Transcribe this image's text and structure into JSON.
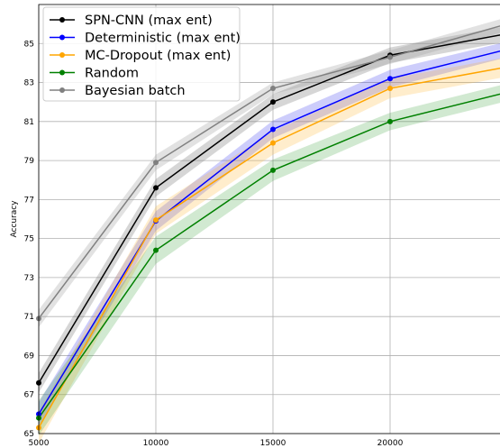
{
  "chart_data": {
    "type": "line",
    "title": "",
    "xlabel": "",
    "ylabel": "Accuracy",
    "x": [
      5000,
      10000,
      15000,
      20000,
      25000
    ],
    "xlim": [
      5000,
      25000
    ],
    "ylim": [
      65,
      87
    ],
    "x_ticks": [
      "5000",
      "10000",
      "15000",
      "20000"
    ],
    "y_ticks": [
      "65",
      "67",
      "69",
      "71",
      "73",
      "75",
      "77",
      "79",
      "81",
      "83",
      "85"
    ],
    "grid": true,
    "legend_position": "top-left",
    "series": [
      {
        "name": "SPN-CNN (max ent)",
        "color": "#000000",
        "values": [
          67.6,
          77.6,
          82.0,
          84.4,
          85.5
        ],
        "band": [
          0.5,
          0.45,
          0.4,
          0.4,
          0.4
        ],
        "band_color": "#808080",
        "band_opacity": 0.32
      },
      {
        "name": "Deterministic (max ent)",
        "color": "#0000ff",
        "values": [
          66.0,
          75.9,
          80.6,
          83.2,
          84.7
        ],
        "band": [
          0.6,
          0.5,
          0.45,
          0.45,
          0.4
        ],
        "band_color": "#4a4af0",
        "band_opacity": 0.28
      },
      {
        "name": "MC-Dropout (max ent)",
        "color": "#ffa500",
        "values": [
          65.3,
          75.95,
          79.9,
          82.7,
          83.8
        ],
        "band": [
          0.8,
          0.7,
          0.6,
          0.5,
          0.5
        ],
        "band_color": "#ffb733",
        "band_opacity": 0.25
      },
      {
        "name": "Random",
        "color": "#008000",
        "values": [
          65.8,
          74.4,
          78.5,
          81.0,
          82.5
        ],
        "band": [
          0.9,
          0.7,
          0.55,
          0.45,
          0.45
        ],
        "band_color": "#2e9a2e",
        "band_opacity": 0.22
      },
      {
        "name": "Bayesian batch",
        "color": "#808080",
        "values": [
          70.9,
          78.9,
          82.7,
          84.3,
          86.0
        ],
        "band": [
          0.45,
          0.4,
          0.3,
          0.35,
          0.35
        ],
        "band_color": "#a0a0a0",
        "band_opacity": 0.3
      }
    ]
  }
}
